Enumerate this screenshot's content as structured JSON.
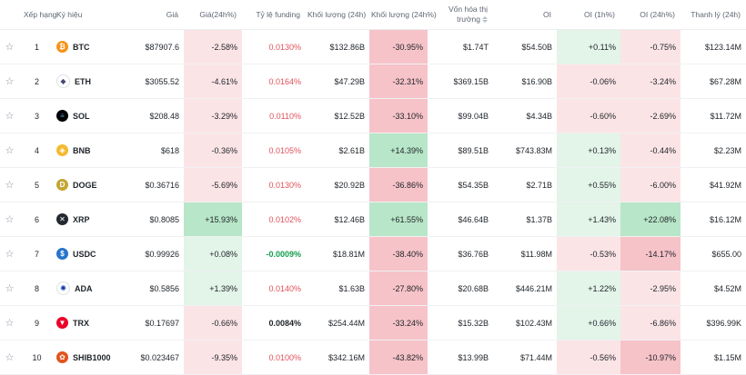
{
  "headers": {
    "rank": "Xếp hạng",
    "symbol": "Ký hiệu",
    "price": "Giá",
    "price_change": "Giá(24h%)",
    "funding": "Tỷ lệ funding",
    "volume": "Khối lượng (24h)",
    "volume_change": "Khối lượng (24h%)",
    "market_cap": "Vốn hóa thị trường",
    "oi": "OI",
    "oi_1h": "OI (1h%)",
    "oi_24h": "OI (24h%)",
    "liquidation": "Thanh lý (24h)"
  },
  "colors": {
    "red_tint": "#fbe4e6",
    "red_strong": "#f6c3c8",
    "green_tint": "#e3f4e9",
    "green_strong": "#b8e6c8",
    "red_text": "#e0505a",
    "green_text": "#119e4d"
  },
  "rows": [
    {
      "rank": "1",
      "symbol": "BTC",
      "icon": "btc-icon",
      "icon_color": "#f7931a",
      "glyph": "₿",
      "price": "$87907.6",
      "price_change": "-2.58%",
      "funding": "0.0130%",
      "volume": "$132.86B",
      "volume_change": "-30.95%",
      "market_cap": "$1.74T",
      "oi": "$54.50B",
      "oi_1h": "+0.11%",
      "oi_24h": "-0.75%",
      "liquidation": "$123.14M"
    },
    {
      "rank": "2",
      "symbol": "ETH",
      "icon": "eth-icon",
      "icon_color": "#ffffff",
      "glyph": "◆",
      "price": "$3055.52",
      "price_change": "-4.61%",
      "funding": "0.0164%",
      "volume": "$47.29B",
      "volume_change": "-32.31%",
      "market_cap": "$369.15B",
      "oi": "$16.90B",
      "oi_1h": "-0.06%",
      "oi_24h": "-3.24%",
      "liquidation": "$67.28M"
    },
    {
      "rank": "3",
      "symbol": "SOL",
      "icon": "sol-icon",
      "icon_color": "#000000",
      "glyph": "≡",
      "price": "$208.48",
      "price_change": "-3.29%",
      "funding": "0.0110%",
      "volume": "$12.52B",
      "volume_change": "-33.10%",
      "market_cap": "$99.04B",
      "oi": "$4.34B",
      "oi_1h": "-0.60%",
      "oi_24h": "-2.69%",
      "liquidation": "$11.72M"
    },
    {
      "rank": "4",
      "symbol": "BNB",
      "icon": "bnb-icon",
      "icon_color": "#f3ba2f",
      "glyph": "◈",
      "price": "$618",
      "price_change": "-0.36%",
      "funding": "0.0105%",
      "volume": "$2.61B",
      "volume_change": "+14.39%",
      "market_cap": "$89.51B",
      "oi": "$743.83M",
      "oi_1h": "+0.13%",
      "oi_24h": "-0.44%",
      "liquidation": "$2.23M"
    },
    {
      "rank": "5",
      "symbol": "DOGE",
      "icon": "doge-icon",
      "icon_color": "#c2a633",
      "glyph": "D",
      "price": "$0.36716",
      "price_change": "-5.69%",
      "funding": "0.0130%",
      "volume": "$20.92B",
      "volume_change": "-36.86%",
      "market_cap": "$54.35B",
      "oi": "$2.71B",
      "oi_1h": "+0.55%",
      "oi_24h": "-6.00%",
      "liquidation": "$41.92M"
    },
    {
      "rank": "6",
      "symbol": "XRP",
      "icon": "xrp-icon",
      "icon_color": "#23292f",
      "glyph": "✕",
      "price": "$0.8085",
      "price_change": "+15.93%",
      "funding": "0.0102%",
      "volume": "$12.46B",
      "volume_change": "+61.55%",
      "market_cap": "$46.64B",
      "oi": "$1.37B",
      "oi_1h": "+1.43%",
      "oi_24h": "+22.08%",
      "liquidation": "$16.12M"
    },
    {
      "rank": "7",
      "symbol": "USDC",
      "icon": "usdc-icon",
      "icon_color": "#2775ca",
      "glyph": "$",
      "price": "$0.99926",
      "price_change": "+0.08%",
      "funding": "-0.0009%",
      "volume": "$18.81M",
      "volume_change": "-38.40%",
      "market_cap": "$36.76B",
      "oi": "$11.98M",
      "oi_1h": "-0.53%",
      "oi_24h": "-14.17%",
      "liquidation": "$655.00"
    },
    {
      "rank": "8",
      "symbol": "ADA",
      "icon": "ada-icon",
      "icon_color": "#ffffff",
      "glyph": "✺",
      "price": "$0.5856",
      "price_change": "+1.39%",
      "funding": "0.0140%",
      "volume": "$1.63B",
      "volume_change": "-27.80%",
      "market_cap": "$20.68B",
      "oi": "$446.21M",
      "oi_1h": "+1.22%",
      "oi_24h": "-2.95%",
      "liquidation": "$4.52M"
    },
    {
      "rank": "9",
      "symbol": "TRX",
      "icon": "trx-icon",
      "icon_color": "#eb0029",
      "glyph": "▼",
      "price": "$0.17697",
      "price_change": "-0.66%",
      "funding": "0.0084%",
      "volume": "$254.44M",
      "volume_change": "-33.24%",
      "market_cap": "$15.32B",
      "oi": "$102.43M",
      "oi_1h": "+0.66%",
      "oi_24h": "-6.86%",
      "liquidation": "$396.99K"
    },
    {
      "rank": "10",
      "symbol": "SHIB1000",
      "icon": "shib-icon",
      "icon_color": "#e1541c",
      "glyph": "✿",
      "price": "$0.023467",
      "price_change": "-9.35%",
      "funding": "0.0100%",
      "volume": "$342.16M",
      "volume_change": "-43.82%",
      "market_cap": "$13.99B",
      "oi": "$71.44M",
      "oi_1h": "-0.56%",
      "oi_24h": "-10.97%",
      "liquidation": "$1.15M"
    }
  ]
}
